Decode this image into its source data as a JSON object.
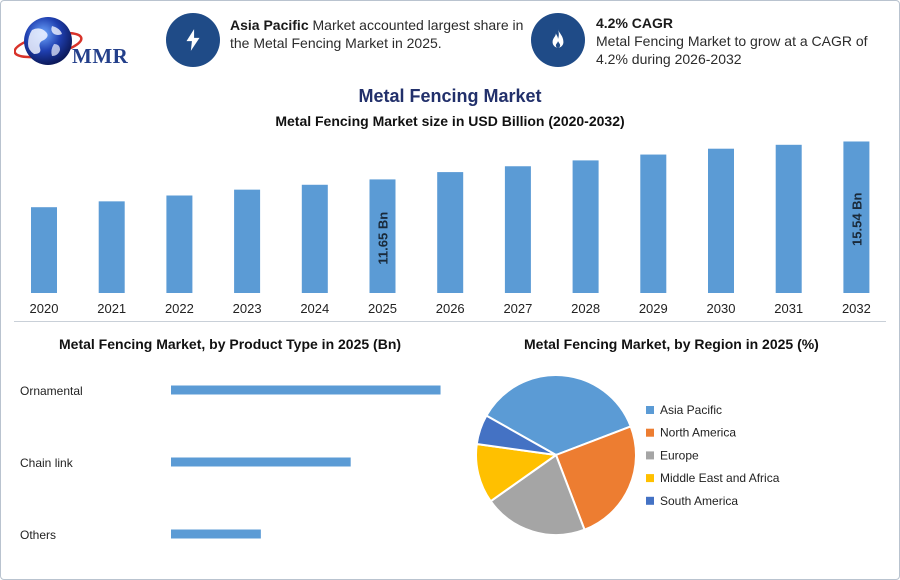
{
  "brand": {
    "logo_text": "MMR"
  },
  "highlights": [
    {
      "icon": "lightning-icon",
      "bold": "Asia Pacific",
      "text": " Market accounted largest share in the Metal Fencing Market in 2025."
    },
    {
      "icon": "flame-icon",
      "bold": "4.2% CAGR",
      "text": "Metal Fencing Market to grow at a CAGR of 4.2% during 2026-2032"
    }
  ],
  "colors": {
    "bar": "#5b9bd5",
    "badge": "#1f4b87",
    "pie": [
      "#5b9bd5",
      "#ed7d31",
      "#a5a5a5",
      "#ffc000",
      "#4472c4"
    ]
  },
  "chart_data": [
    {
      "type": "bar",
      "title": "Metal Fencing Market",
      "subtitle": "Metal Fencing Market size in USD Billion (2020-2032)",
      "categories": [
        "2020",
        "2021",
        "2022",
        "2023",
        "2024",
        "2025",
        "2026",
        "2027",
        "2028",
        "2029",
        "2030",
        "2031",
        "2032"
      ],
      "values": [
        8.8,
        9.4,
        10.0,
        10.6,
        11.1,
        11.65,
        12.4,
        13.0,
        13.6,
        14.2,
        14.8,
        15.2,
        15.54
      ],
      "data_labels": [
        {
          "category": "2025",
          "label": "11.65 Bn"
        },
        {
          "category": "2032",
          "label": "15.54 Bn"
        }
      ],
      "ylim": [
        0,
        16
      ],
      "xlabel": "",
      "ylabel": ""
    },
    {
      "type": "bar",
      "orientation": "horizontal",
      "title": "Metal Fencing Market, by Product Type in 2025 (Bn)",
      "categories": [
        "Ornamental",
        "Chain link",
        "Others"
      ],
      "values": [
        6.0,
        4.0,
        2.0
      ],
      "xlim": [
        0,
        6.5
      ]
    },
    {
      "type": "pie",
      "title": "Metal Fencing Market, by Region in 2025 (%)",
      "labels": [
        "Asia Pacific",
        "North America",
        "Europe",
        "Middle East and Africa",
        "South America"
      ],
      "values": [
        36,
        25,
        21,
        12,
        6
      ],
      "legend_position": "right"
    }
  ]
}
